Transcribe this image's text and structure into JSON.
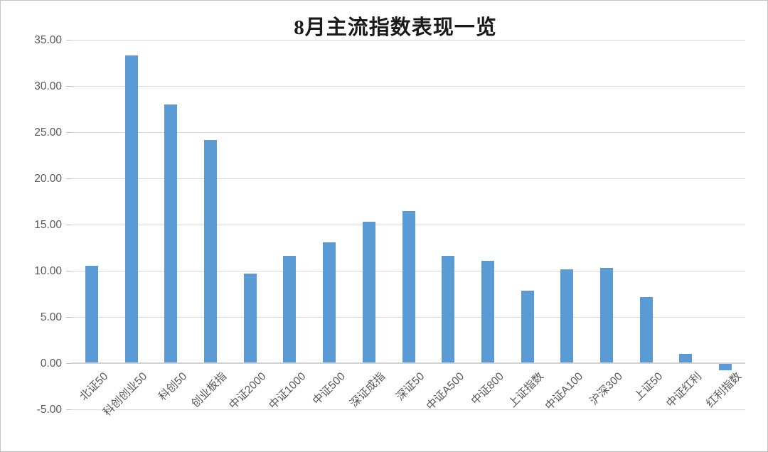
{
  "window": {
    "background": "#ffffff",
    "border_color": "#c6c6c6"
  },
  "chart_data": {
    "type": "bar",
    "title": "8月主流指数表现一览",
    "categories": [
      "北证50",
      "科创创业50",
      "科创50",
      "创业板指",
      "中证2000",
      "中证1000",
      "中证500",
      "深证成指",
      "深证50",
      "中证A500",
      "中证800",
      "上证指数",
      "中证A100",
      "沪深300",
      "上证50",
      "中证红利",
      "红利指数"
    ],
    "values": [
      10.6,
      33.3,
      28.0,
      24.2,
      9.7,
      11.6,
      13.1,
      15.3,
      16.5,
      11.6,
      11.1,
      7.9,
      10.2,
      10.3,
      7.2,
      1.0,
      -0.7
    ],
    "xlabel": "",
    "ylabel": "",
    "ylim": [
      -5,
      35
    ],
    "y_ticks": [
      {
        "value": 35,
        "label": "35.00"
      },
      {
        "value": 30,
        "label": "30.00"
      },
      {
        "value": 25,
        "label": "25.00"
      },
      {
        "value": 20,
        "label": "20.00"
      },
      {
        "value": 15,
        "label": "15.00"
      },
      {
        "value": 10,
        "label": "10.00"
      },
      {
        "value": 5,
        "label": "5.00"
      },
      {
        "value": 0,
        "label": "0.00"
      },
      {
        "value": -5,
        "label": "-5.00"
      }
    ],
    "grid": true,
    "legend": "none",
    "bar_color": "#5B9BD5",
    "gridline_color": "#D9D9D9",
    "axis_line_color": "#D2D2D2",
    "tick_color": "#BFBFBF",
    "label_color": "#595959",
    "title_color": "#1a1a1a"
  }
}
